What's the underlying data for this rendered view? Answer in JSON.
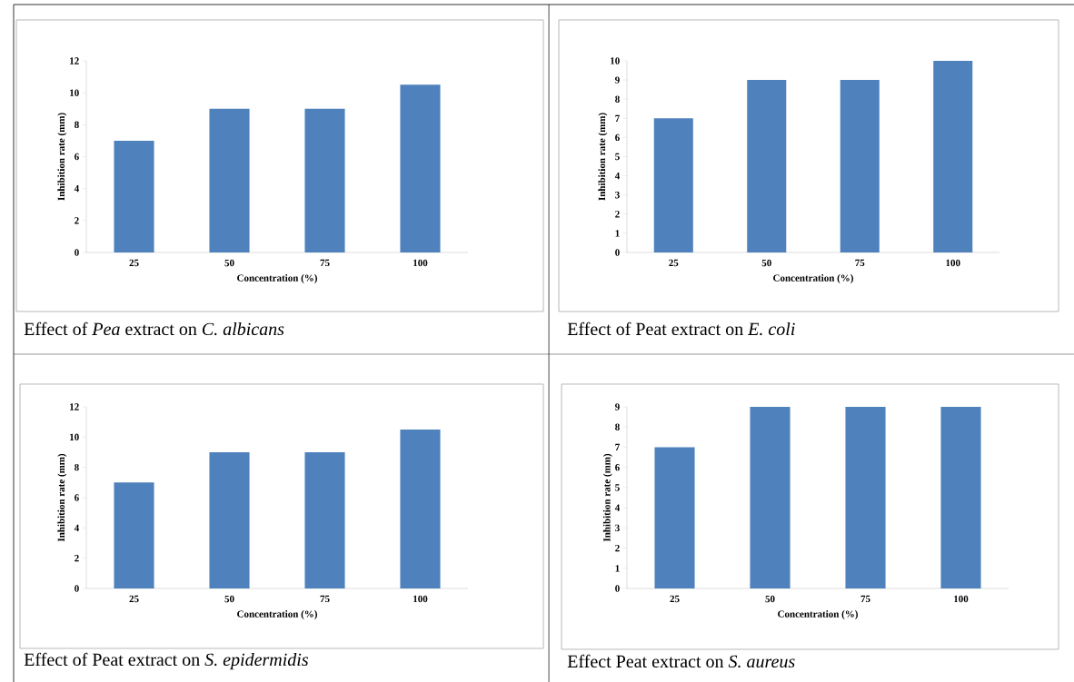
{
  "chart_data": [
    {
      "type": "bar",
      "categories": [
        "25",
        "50",
        "75",
        "100"
      ],
      "values": [
        7,
        9,
        9,
        10.5
      ],
      "color": "#4f81bd",
      "xlabel": "Concentration  (%)",
      "ylabel": "Inhibition rate (mm)",
      "ylim": [
        0,
        12
      ],
      "yticks": [
        0,
        2,
        4,
        6,
        8,
        10,
        12
      ],
      "annotations": [
        "Effect of *Pea* extract on *C. albicans*"
      ]
    },
    {
      "type": "bar",
      "categories": [
        "25",
        "50",
        "75",
        "100"
      ],
      "values": [
        7,
        9,
        9,
        10
      ],
      "color": "#4f81bd",
      "xlabel": "Concentration  (%)",
      "ylabel": "Inhibition rate (mm)",
      "ylim": [
        0,
        10
      ],
      "yticks": [
        0,
        1,
        2,
        3,
        4,
        5,
        6,
        7,
        8,
        9,
        10
      ],
      "annotations": [
        "Effect of Peat extract on *E. coli*"
      ]
    },
    {
      "type": "bar",
      "categories": [
        "25",
        "50",
        "75",
        "100"
      ],
      "values": [
        7,
        9,
        9,
        10.5
      ],
      "color": "#4f81bd",
      "xlabel": "Concentration  (%)",
      "ylabel": "Inhibition rate (mm)",
      "ylim": [
        0,
        12
      ],
      "yticks": [
        0,
        2,
        4,
        6,
        8,
        10,
        12
      ],
      "annotations": [
        "Effect of Peat extract on *S. epidermidis*"
      ]
    },
    {
      "type": "bar",
      "categories": [
        "25",
        "50",
        "75",
        "100"
      ],
      "values": [
        7,
        9,
        9,
        9
      ],
      "color": "#4f81bd",
      "xlabel": "Concentration  (%)",
      "ylabel": "Inhibition rate (mm)",
      "ylim": [
        0,
        9
      ],
      "yticks": [
        0,
        1,
        2,
        3,
        4,
        5,
        6,
        7,
        8,
        9
      ],
      "annotations": [
        "Effect  Peat  extract  on *S. aureus*"
      ]
    }
  ]
}
